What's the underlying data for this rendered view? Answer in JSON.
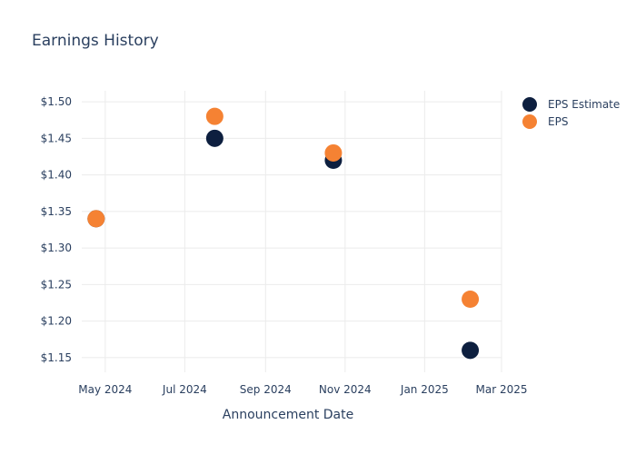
{
  "chart_data": {
    "type": "scatter",
    "title": "Earnings History",
    "xlabel": "Announcement Date",
    "ylabel": "",
    "x_tick_labels": [
      "May 2024",
      "Jul 2024",
      "Sep 2024",
      "Nov 2024",
      "Jan 2025",
      "Mar 2025"
    ],
    "x_ticks": [
      "2024-05-01",
      "2024-07-01",
      "2024-09-01",
      "2024-11-01",
      "2025-01-01",
      "2025-03-01"
    ],
    "xlim": [
      "2024-04-13",
      "2025-03-01"
    ],
    "y_tick_labels": [
      "$1.15",
      "$1.20",
      "$1.25",
      "$1.30",
      "$1.35",
      "$1.40",
      "$1.45",
      "$1.50"
    ],
    "y_ticks": [
      1.15,
      1.2,
      1.25,
      1.3,
      1.35,
      1.4,
      1.45,
      1.5
    ],
    "ylim": [
      1.13,
      1.515
    ],
    "grid": true,
    "legend_position": "top-right",
    "series": [
      {
        "name": "EPS Estimate",
        "color": "#0d1f3f",
        "x": [
          "2024-04-24",
          "2024-07-24",
          "2024-10-23",
          "2025-02-05"
        ],
        "y": [
          1.34,
          1.45,
          1.42,
          1.16
        ]
      },
      {
        "name": "EPS",
        "color": "#f58233",
        "x": [
          "2024-04-24",
          "2024-07-24",
          "2024-10-23",
          "2025-02-05"
        ],
        "y": [
          1.34,
          1.48,
          1.43,
          1.23
        ]
      }
    ]
  }
}
